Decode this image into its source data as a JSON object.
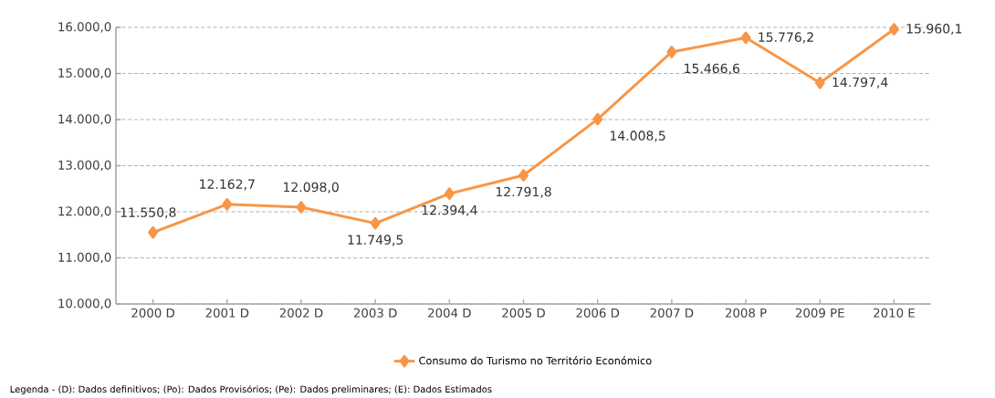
{
  "chart_data": {
    "type": "line",
    "categories": [
      "2000 D",
      "2001 D",
      "2002 D",
      "2003 D",
      "2004 D",
      "2005 D",
      "2006 D",
      "2007 D",
      "2008 P",
      "2009 PE",
      "2010 E"
    ],
    "series": [
      {
        "name": "Consumo do Turismo no Território Económico",
        "color": "#f79646",
        "values": [
          11550.8,
          12162.7,
          12098.0,
          11749.5,
          12394.4,
          12791.8,
          14008.5,
          15466.6,
          15776.2,
          14797.4,
          15960.1
        ],
        "value_labels": [
          "11.550,8",
          "12.162,7",
          "12.098,0",
          "11.749,5",
          "12.394,4",
          "12.791,8",
          "14.008,5",
          "15.466,6",
          "15.776,2",
          "14.797,4",
          "15.960,1"
        ]
      }
    ],
    "ylim": [
      10000,
      16000
    ],
    "yticks": [
      {
        "value": 10000,
        "label": "10.000,0"
      },
      {
        "value": 11000,
        "label": "11.000,0"
      },
      {
        "value": 12000,
        "label": "12.000,0"
      },
      {
        "value": 13000,
        "label": "13.000,0"
      },
      {
        "value": 14000,
        "label": "14.000,0"
      },
      {
        "value": 15000,
        "label": "15.000,0"
      },
      {
        "value": 16000,
        "label": "16.000,0"
      }
    ],
    "grid": "y",
    "legend": "bottom",
    "marker": "diamond",
    "line_style": "solid",
    "annotations": [
      "Legenda - (D): Dados definitivos; (Po): Dados Provisórios; (Pe): Dados preliminares; (E): Dados Estimados"
    ]
  }
}
